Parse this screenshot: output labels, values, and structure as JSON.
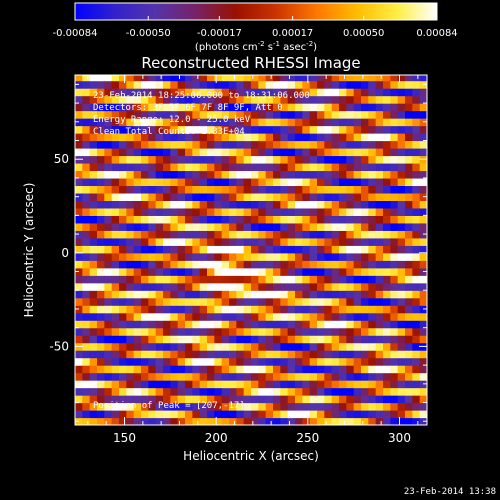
{
  "chart_data": {
    "type": "heatmap",
    "title": "Reconstructed RHESSI Image",
    "xlabel": "Heliocentric X (arcsec)",
    "ylabel": "Heliocentric Y (arcsec)",
    "xlim": [
      123,
      315
    ],
    "ylim": [
      -92,
      95
    ],
    "xticks": [
      150,
      200,
      250,
      300
    ],
    "yticks": [
      -50,
      0,
      50
    ],
    "colorbar": {
      "range": [
        -0.00084,
        0.00084
      ],
      "tick_labels": [
        "-0.00084",
        "-0.00050",
        "-0.00017",
        "0.00017",
        "0.00050",
        "0.00084"
      ],
      "tick_values": [
        -0.00084,
        -0.0005,
        -0.00017,
        0.00017,
        0.0005,
        0.00084
      ],
      "unit_label": "(photons cm",
      "unit_exp1": "-2",
      "unit_mid": " s",
      "unit_exp2": "-1",
      "unit_mid2": " asec",
      "unit_exp3": "-2",
      "unit_end": ")",
      "colormap": [
        "#0000ff",
        "#3322cc",
        "#5533aa",
        "#772266",
        "#991100",
        "#cc3300",
        "#ff7700",
        "#ffbb00",
        "#ffee44",
        "#ffffff"
      ]
    },
    "annotations": [
      "23-Feb-2014 18:25:06.000 to 18:31:06.000",
      "Detectors: 3F 5F 6F 7F 8F 9F, Att 0",
      "Energy Range: 12.0 - 25.0 keV",
      "Clean    Total Counts: 1.33E+04"
    ],
    "peak_label": "Position of Peak = [207,-17]",
    "peak": [
      207,
      -17
    ],
    "pattern": {
      "stripe_slope": 0.145,
      "stripe_period_arcsec": 10.3
    }
  },
  "footer": {
    "date": "23-Feb-2014 13:38"
  }
}
